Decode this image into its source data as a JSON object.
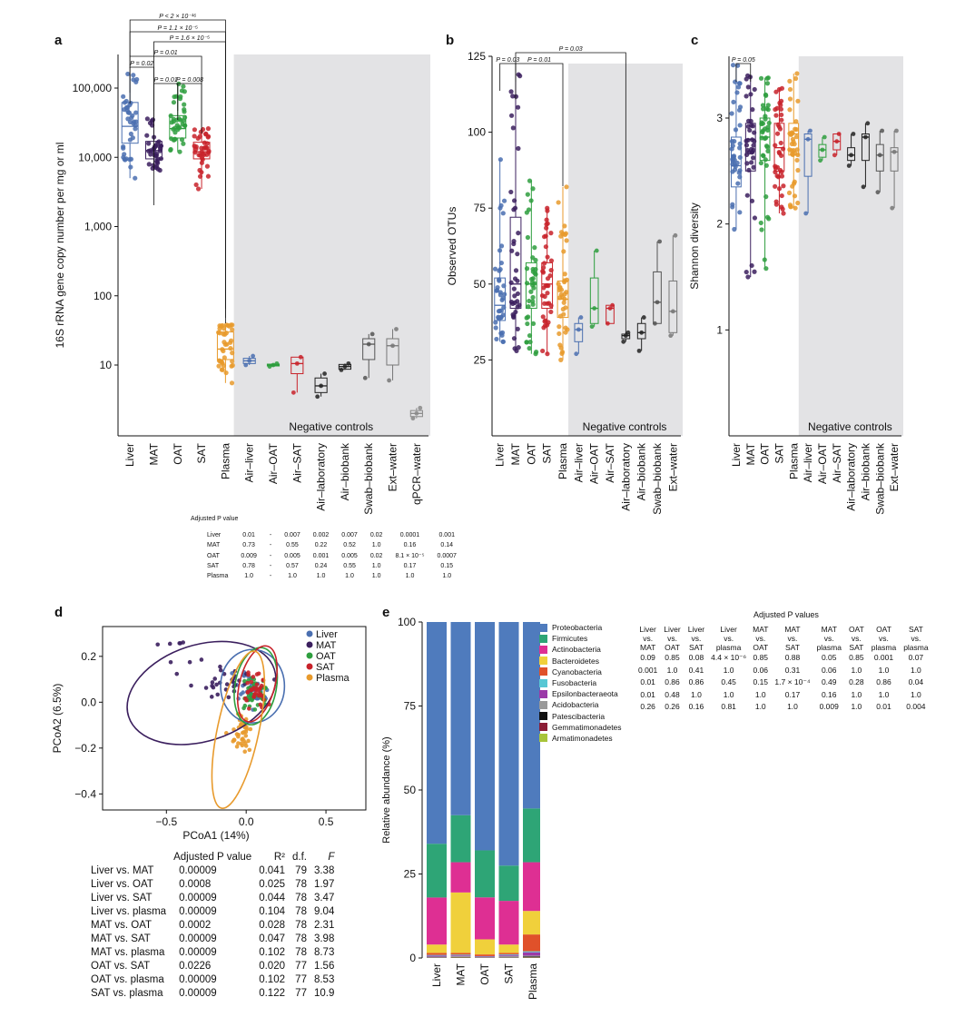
{
  "panel_labels": {
    "a": "a",
    "b": "b",
    "c": "c",
    "d": "d",
    "e": "e"
  },
  "colors": {
    "Liver": "#4a6fb0",
    "MAT": "#3b1f5e",
    "OAT": "#2e9e3e",
    "SAT": "#c8222a",
    "Plasma": "#e89a2c",
    "neg_box": "#555555",
    "shade": "#e3e3e5"
  },
  "chart_data": [
    {
      "id": "a",
      "type": "box",
      "ylabel": "16S rRNA gene copy number per mg or ml",
      "yscale": "log",
      "ylim": [
        1,
        1000000
      ],
      "ytick_labels": [
        "100,000",
        "10,000",
        "1,000",
        "100",
        "10"
      ],
      "ytick_values": [
        100000,
        10000,
        1000,
        100,
        10
      ],
      "categories": [
        "Liver",
        "MAT",
        "OAT",
        "SAT",
        "Plasma",
        "Air–liver",
        "Air–OAT",
        "Air–SAT",
        "Air–laboratory",
        "Air–biobank",
        "Swab–biobank",
        "Ext–water",
        "qPCR–water"
      ],
      "negative_controls_label": "Negative controls",
      "boxes": [
        {
          "q1": 16000,
          "med": 28000,
          "q3": 62000,
          "wlo": 5000,
          "whi": 160000
        },
        {
          "q1": 9500,
          "med": 12500,
          "q3": 17000,
          "wlo": 6500,
          "whi": 36000
        },
        {
          "q1": 19000,
          "med": 26000,
          "q3": 40000,
          "wlo": 12000,
          "whi": 115000
        },
        {
          "q1": 9500,
          "med": 12000,
          "q3": 16500,
          "wlo": 3500,
          "whi": 26000
        },
        {
          "q1": 12,
          "med": 17,
          "q3": 30,
          "wlo": 5.5,
          "whi": 38
        },
        {
          "q1": 10.5,
          "med": 11.5,
          "q3": 12.5,
          "wlo": 10,
          "whi": 13.5
        },
        {
          "q1": 9.7,
          "med": 10,
          "q3": 10.3,
          "wlo": 9.5,
          "whi": 10.5
        },
        {
          "q1": 7.5,
          "med": 10.5,
          "q3": 13,
          "wlo": 4,
          "whi": 13
        },
        {
          "q1": 4,
          "med": 5,
          "q3": 6.5,
          "wlo": 3.5,
          "whi": 7.5
        },
        {
          "q1": 8.7,
          "med": 9.5,
          "q3": 10.2,
          "wlo": 8.5,
          "whi": 10.5
        },
        {
          "q1": 12,
          "med": 20,
          "q3": 24,
          "wlo": 6.5,
          "whi": 28
        },
        {
          "q1": 10,
          "med": 19,
          "q3": 24,
          "wlo": 6,
          "whi": 33
        },
        {
          "q1": 1.8,
          "med": 2,
          "q3": 2.2,
          "wlo": 1.7,
          "whi": 2.4
        }
      ],
      "pvalues": [
        {
          "from": 0,
          "to": 1,
          "label": "P = 0.02"
        },
        {
          "from": 1,
          "to": 2,
          "label": "P = 0.01"
        },
        {
          "from": 2,
          "to": 3,
          "label": "P = 0.008"
        },
        {
          "from": 0,
          "to": 3,
          "label": "P = 0.01"
        },
        {
          "from": 1,
          "to": 4,
          "label": "P = 1.6 × 10⁻⁵"
        },
        {
          "from": 0,
          "to": 4,
          "label": "P = 1.1 × 10⁻⁵"
        },
        {
          "from": 0,
          "to": 4,
          "label": "P < 2 × 10⁻¹⁶"
        }
      ]
    },
    {
      "id": "b",
      "type": "box",
      "ylabel": "Observed OTUs",
      "ylim": [
        0,
        125
      ],
      "yticks": [
        25,
        50,
        75,
        100,
        125
      ],
      "categories": [
        "Liver",
        "MAT",
        "OAT",
        "SAT",
        "Plasma",
        "Air–liver",
        "Air–OAT",
        "Air–SAT",
        "Air–laboratory",
        "Air–biobank",
        "Swab–biobank",
        "Ext–water"
      ],
      "negative_controls_label": "Negative controls",
      "boxes": [
        {
          "q1": 38,
          "med": 43,
          "q3": 52,
          "wlo": 31,
          "whi": 91
        },
        {
          "q1": 42,
          "med": 50,
          "q3": 72,
          "wlo": 28,
          "whi": 119
        },
        {
          "q1": 42,
          "med": 50,
          "q3": 57,
          "wlo": 27,
          "whi": 84
        },
        {
          "q1": 42,
          "med": 50,
          "q3": 57,
          "wlo": 27,
          "whi": 75
        },
        {
          "q1": 39,
          "med": 45,
          "q3": 51,
          "wlo": 25,
          "whi": 82
        },
        {
          "q1": 31,
          "med": 35,
          "q3": 37,
          "wlo": 27,
          "whi": 39
        },
        {
          "q1": 37,
          "med": 42,
          "q3": 52,
          "wlo": 36,
          "whi": 61
        },
        {
          "q1": 37,
          "med": 42,
          "q3": 43,
          "wlo": 37,
          "whi": 43
        },
        {
          "q1": 32,
          "med": 33,
          "q3": 33.5,
          "wlo": 31,
          "whi": 34
        },
        {
          "q1": 32,
          "med": 34,
          "q3": 37,
          "wlo": 28,
          "whi": 39
        },
        {
          "q1": 37,
          "med": 44,
          "q3": 54,
          "wlo": 37,
          "whi": 64
        },
        {
          "q1": 34,
          "med": 41,
          "q3": 51,
          "wlo": 33,
          "whi": 66
        }
      ],
      "pvalues": [
        {
          "from": 0,
          "to": 1,
          "label": "P = 0.03"
        },
        {
          "from": 1,
          "to": 4,
          "label": "P = 0.01"
        },
        {
          "from": 1,
          "to": 8,
          "label": "P = 0.03"
        }
      ]
    },
    {
      "id": "c",
      "type": "box",
      "ylabel": "Shannon diversity",
      "ylim": [
        0,
        3.6
      ],
      "yticks": [
        1,
        2,
        3
      ],
      "categories": [
        "Liver",
        "MAT",
        "OAT",
        "SAT",
        "Plasma",
        "Air–liver",
        "Air–OAT",
        "Air–SAT",
        "Air–laboratory",
        "Air–biobank",
        "Swab–biobank",
        "Ext–water"
      ],
      "negative_controls_label": "Negative controls",
      "boxes": [
        {
          "q1": 2.35,
          "med": 2.55,
          "q3": 2.82,
          "wlo": 1.95,
          "whi": 3.5
        },
        {
          "q1": 2.5,
          "med": 2.8,
          "q3": 2.95,
          "wlo": 1.5,
          "whi": 3.4
        },
        {
          "q1": 2.6,
          "med": 2.82,
          "q3": 3.0,
          "wlo": 1.58,
          "whi": 3.38
        },
        {
          "q1": 2.5,
          "med": 2.72,
          "q3": 2.95,
          "wlo": 2.1,
          "whi": 3.28
        },
        {
          "q1": 2.65,
          "med": 2.85,
          "q3": 2.95,
          "wlo": 2.15,
          "whi": 3.42
        },
        {
          "q1": 2.45,
          "med": 2.8,
          "q3": 2.85,
          "wlo": 2.1,
          "whi": 2.88
        },
        {
          "q1": 2.63,
          "med": 2.7,
          "q3": 2.75,
          "wlo": 2.6,
          "whi": 2.82
        },
        {
          "q1": 2.7,
          "med": 2.78,
          "q3": 2.85,
          "wlo": 2.65,
          "whi": 2.85
        },
        {
          "q1": 2.6,
          "med": 2.65,
          "q3": 2.72,
          "wlo": 2.55,
          "whi": 2.85
        },
        {
          "q1": 2.6,
          "med": 2.82,
          "q3": 2.85,
          "wlo": 2.35,
          "whi": 2.95
        },
        {
          "q1": 2.5,
          "med": 2.65,
          "q3": 2.75,
          "wlo": 2.3,
          "whi": 2.88
        },
        {
          "q1": 2.5,
          "med": 2.68,
          "q3": 2.72,
          "wlo": 2.15,
          "whi": 2.88
        }
      ],
      "pvalues": [
        {
          "from": 0,
          "to": 1,
          "label": "P = 0.05"
        }
      ]
    },
    {
      "id": "d",
      "type": "scatter",
      "xlabel": "PCoA1 (14%)",
      "ylabel": "PCoA2 (6.5%)",
      "xlim": [
        -0.9,
        0.75
      ],
      "ylim": [
        -0.47,
        0.33
      ],
      "xticks": [
        -0.5,
        0.0,
        0.5
      ],
      "xtick_labels": [
        "−0.5",
        "0.0",
        "0.5"
      ],
      "yticks": [
        0.2,
        0.0,
        -0.2,
        -0.4
      ],
      "ytick_labels": [
        "0.2",
        "0.0",
        "−0.2",
        "−0.4"
      ],
      "legend": [
        "Liver",
        "MAT",
        "OAT",
        "SAT",
        "Plasma"
      ],
      "legend_position": "top-right",
      "series": [
        {
          "name": "Liver",
          "cx": 0.05,
          "cy": 0.06,
          "sx": 0.11,
          "sy": 0.07
        },
        {
          "name": "MAT",
          "cx": -0.12,
          "cy": 0.08,
          "sx": 0.2,
          "sy": 0.08
        },
        {
          "name": "OAT",
          "cx": 0.05,
          "cy": 0.04,
          "sx": 0.09,
          "sy": 0.08
        },
        {
          "name": "SAT",
          "cx": 0.07,
          "cy": 0.05,
          "sx": 0.08,
          "sy": 0.07
        },
        {
          "name": "Plasma",
          "cx": -0.03,
          "cy": -0.14,
          "sx": 0.07,
          "sy": 0.1
        }
      ],
      "ellipses": [
        {
          "name": "MAT",
          "cx": -0.28,
          "cy": 0.04,
          "rx": 0.48,
          "ry": 0.21,
          "angle": -18
        },
        {
          "name": "Liver",
          "cx": 0.04,
          "cy": 0.07,
          "rx": 0.2,
          "ry": 0.16,
          "angle": 0
        },
        {
          "name": "OAT",
          "cx": 0.06,
          "cy": 0.07,
          "rx": 0.13,
          "ry": 0.17,
          "angle": 10
        },
        {
          "name": "SAT",
          "cx": 0.07,
          "cy": 0.08,
          "rx": 0.11,
          "ry": 0.17,
          "angle": 15
        },
        {
          "name": "Plasma",
          "cx": -0.05,
          "cy": -0.12,
          "rx": 0.13,
          "ry": 0.35,
          "angle": 12
        }
      ]
    },
    {
      "id": "e",
      "type": "stacked-bar",
      "ylabel": "Relative abundance (%)",
      "ylim": [
        0,
        100
      ],
      "yticks": [
        0,
        25,
        50,
        75,
        100
      ],
      "categories": [
        "Liver",
        "MAT",
        "OAT",
        "SAT",
        "Plasma"
      ],
      "series": [
        {
          "name": "Proteobacteria",
          "color": "#4f7bbd",
          "values": [
            66.0,
            57.5,
            68.0,
            72.5,
            55.5
          ]
        },
        {
          "name": "Firmicutes",
          "color": "#2ea576",
          "values": [
            16.0,
            14.0,
            14.0,
            10.5,
            16.0
          ]
        },
        {
          "name": "Actinobacteria",
          "color": "#de2f93",
          "values": [
            14.0,
            9.0,
            12.5,
            13.0,
            14.5
          ]
        },
        {
          "name": "Bacteroidetes",
          "color": "#f0d03b",
          "values": [
            2.5,
            18.0,
            4.5,
            2.5,
            7.0
          ]
        },
        {
          "name": "Cyanobacteria",
          "color": "#e0512a",
          "values": [
            0.6,
            0.5,
            0.5,
            0.4,
            5.0
          ]
        },
        {
          "name": "Fusobacteria",
          "color": "#57c7d4",
          "values": [
            0.2,
            0.2,
            0.1,
            0.2,
            0.3
          ]
        },
        {
          "name": "Epsilonbacteraeota",
          "color": "#9b3aa8",
          "values": [
            0.3,
            0.2,
            0.2,
            0.3,
            1.0
          ]
        },
        {
          "name": "Acidobacteria",
          "color": "#999999",
          "values": [
            0.2,
            0.3,
            0.1,
            0.4,
            0.3
          ]
        },
        {
          "name": "Patescibacteria",
          "color": "#111111",
          "values": [
            0.1,
            0.1,
            0.05,
            0.1,
            0.2
          ]
        },
        {
          "name": "Gemmatimonadetes",
          "color": "#8b1d35",
          "values": [
            0.05,
            0.1,
            0.05,
            0.05,
            0.1
          ]
        },
        {
          "name": "Armatimonadetes",
          "color": "#a8c43a",
          "values": [
            0.05,
            0.1,
            0.05,
            0.05,
            0.1
          ]
        }
      ]
    }
  ],
  "adj_table_a": {
    "title": "Adjusted P value",
    "rows": [
      {
        "label": "Liver",
        "values": [
          "0.01",
          "-",
          "0.007",
          "0.002",
          "0.007",
          "0.02",
          "0.0001",
          "0.001"
        ]
      },
      {
        "label": "MAT",
        "values": [
          "0.73",
          "-",
          "0.55",
          "0.22",
          "0.52",
          "1.0",
          "0.16",
          "0.14"
        ]
      },
      {
        "label": "OAT",
        "values": [
          "0.009",
          "-",
          "0.005",
          "0.001",
          "0.005",
          "0.02",
          "8.1 × 10⁻⁵",
          "0.0007"
        ]
      },
      {
        "label": "SAT",
        "values": [
          "0.78",
          "-",
          "0.57",
          "0.24",
          "0.55",
          "1.0",
          "0.17",
          "0.15"
        ]
      },
      {
        "label": "Plasma",
        "values": [
          "1.0",
          "-",
          "1.0",
          "1.0",
          "1.0",
          "1.0",
          "1.0",
          "1.0"
        ]
      }
    ]
  },
  "table_d": {
    "headers": [
      "Adjusted P value",
      "R²",
      "d.f.",
      "F"
    ],
    "rows": [
      [
        "Liver vs. MAT",
        "0.00009",
        "0.041",
        "79",
        "3.38"
      ],
      [
        "Liver vs. OAT",
        "0.0008",
        "0.025",
        "78",
        "1.97"
      ],
      [
        "Liver vs. SAT",
        "0.00009",
        "0.044",
        "78",
        "3.47"
      ],
      [
        "Liver vs. plasma",
        "0.00009",
        "0.104",
        "78",
        "9.04"
      ],
      [
        "MAT vs. OAT",
        "0.0002",
        "0.028",
        "78",
        "2.31"
      ],
      [
        "MAT vs. SAT",
        "0.00009",
        "0.047",
        "78",
        "3.98"
      ],
      [
        "MAT vs. plasma",
        "0.00009",
        "0.102",
        "78",
        "8.73"
      ],
      [
        "OAT vs. SAT",
        "0.0226",
        "0.020",
        "77",
        "1.56"
      ],
      [
        "OAT vs. plasma",
        "0.00009",
        "0.102",
        "77",
        "8.53"
      ],
      [
        "SAT vs. plasma",
        "0.00009",
        "0.122",
        "77",
        "10.9"
      ]
    ]
  },
  "table_e": {
    "title": "Adjusted P values",
    "headers": [
      [
        "Liver",
        "vs.",
        "MAT"
      ],
      [
        "Liver",
        "vs.",
        "OAT"
      ],
      [
        "Liver",
        "vs.",
        "SAT"
      ],
      [
        "Liver",
        "vs.",
        "plasma"
      ],
      [
        "MAT",
        "vs.",
        "OAT"
      ],
      [
        "MAT",
        "vs.",
        "SAT"
      ],
      [
        "MAT",
        "vs.",
        "plasma"
      ],
      [
        "OAT",
        "vs.",
        "SAT"
      ],
      [
        "OAT",
        "vs.",
        "plasma"
      ],
      [
        "SAT",
        "vs.",
        "plasma"
      ]
    ],
    "rows": [
      [
        "0.09",
        "0.85",
        "0.08",
        "4.4 × 10⁻⁶",
        "0.85",
        "0.88",
        "0.05",
        "0.85",
        "0.001",
        "0.07"
      ],
      [
        "0.001",
        "1.0",
        "0.41",
        "1.0",
        "0.06",
        "0.31",
        "0.06",
        "1.0",
        "1.0",
        "1.0"
      ],
      [
        "0.01",
        "0.86",
        "0.86",
        "0.45",
        "0.15",
        "1.7 × 10⁻⁴",
        "0.49",
        "0.28",
        "0.86",
        "0.04"
      ],
      [
        "0.01",
        "0.48",
        "1.0",
        "1.0",
        "1.0",
        "0.17",
        "0.16",
        "1.0",
        "1.0",
        "1.0"
      ],
      [
        "0.26",
        "0.26",
        "0.16",
        "0.81",
        "1.0",
        "1.0",
        "0.009",
        "1.0",
        "0.01",
        "0.004"
      ]
    ]
  }
}
